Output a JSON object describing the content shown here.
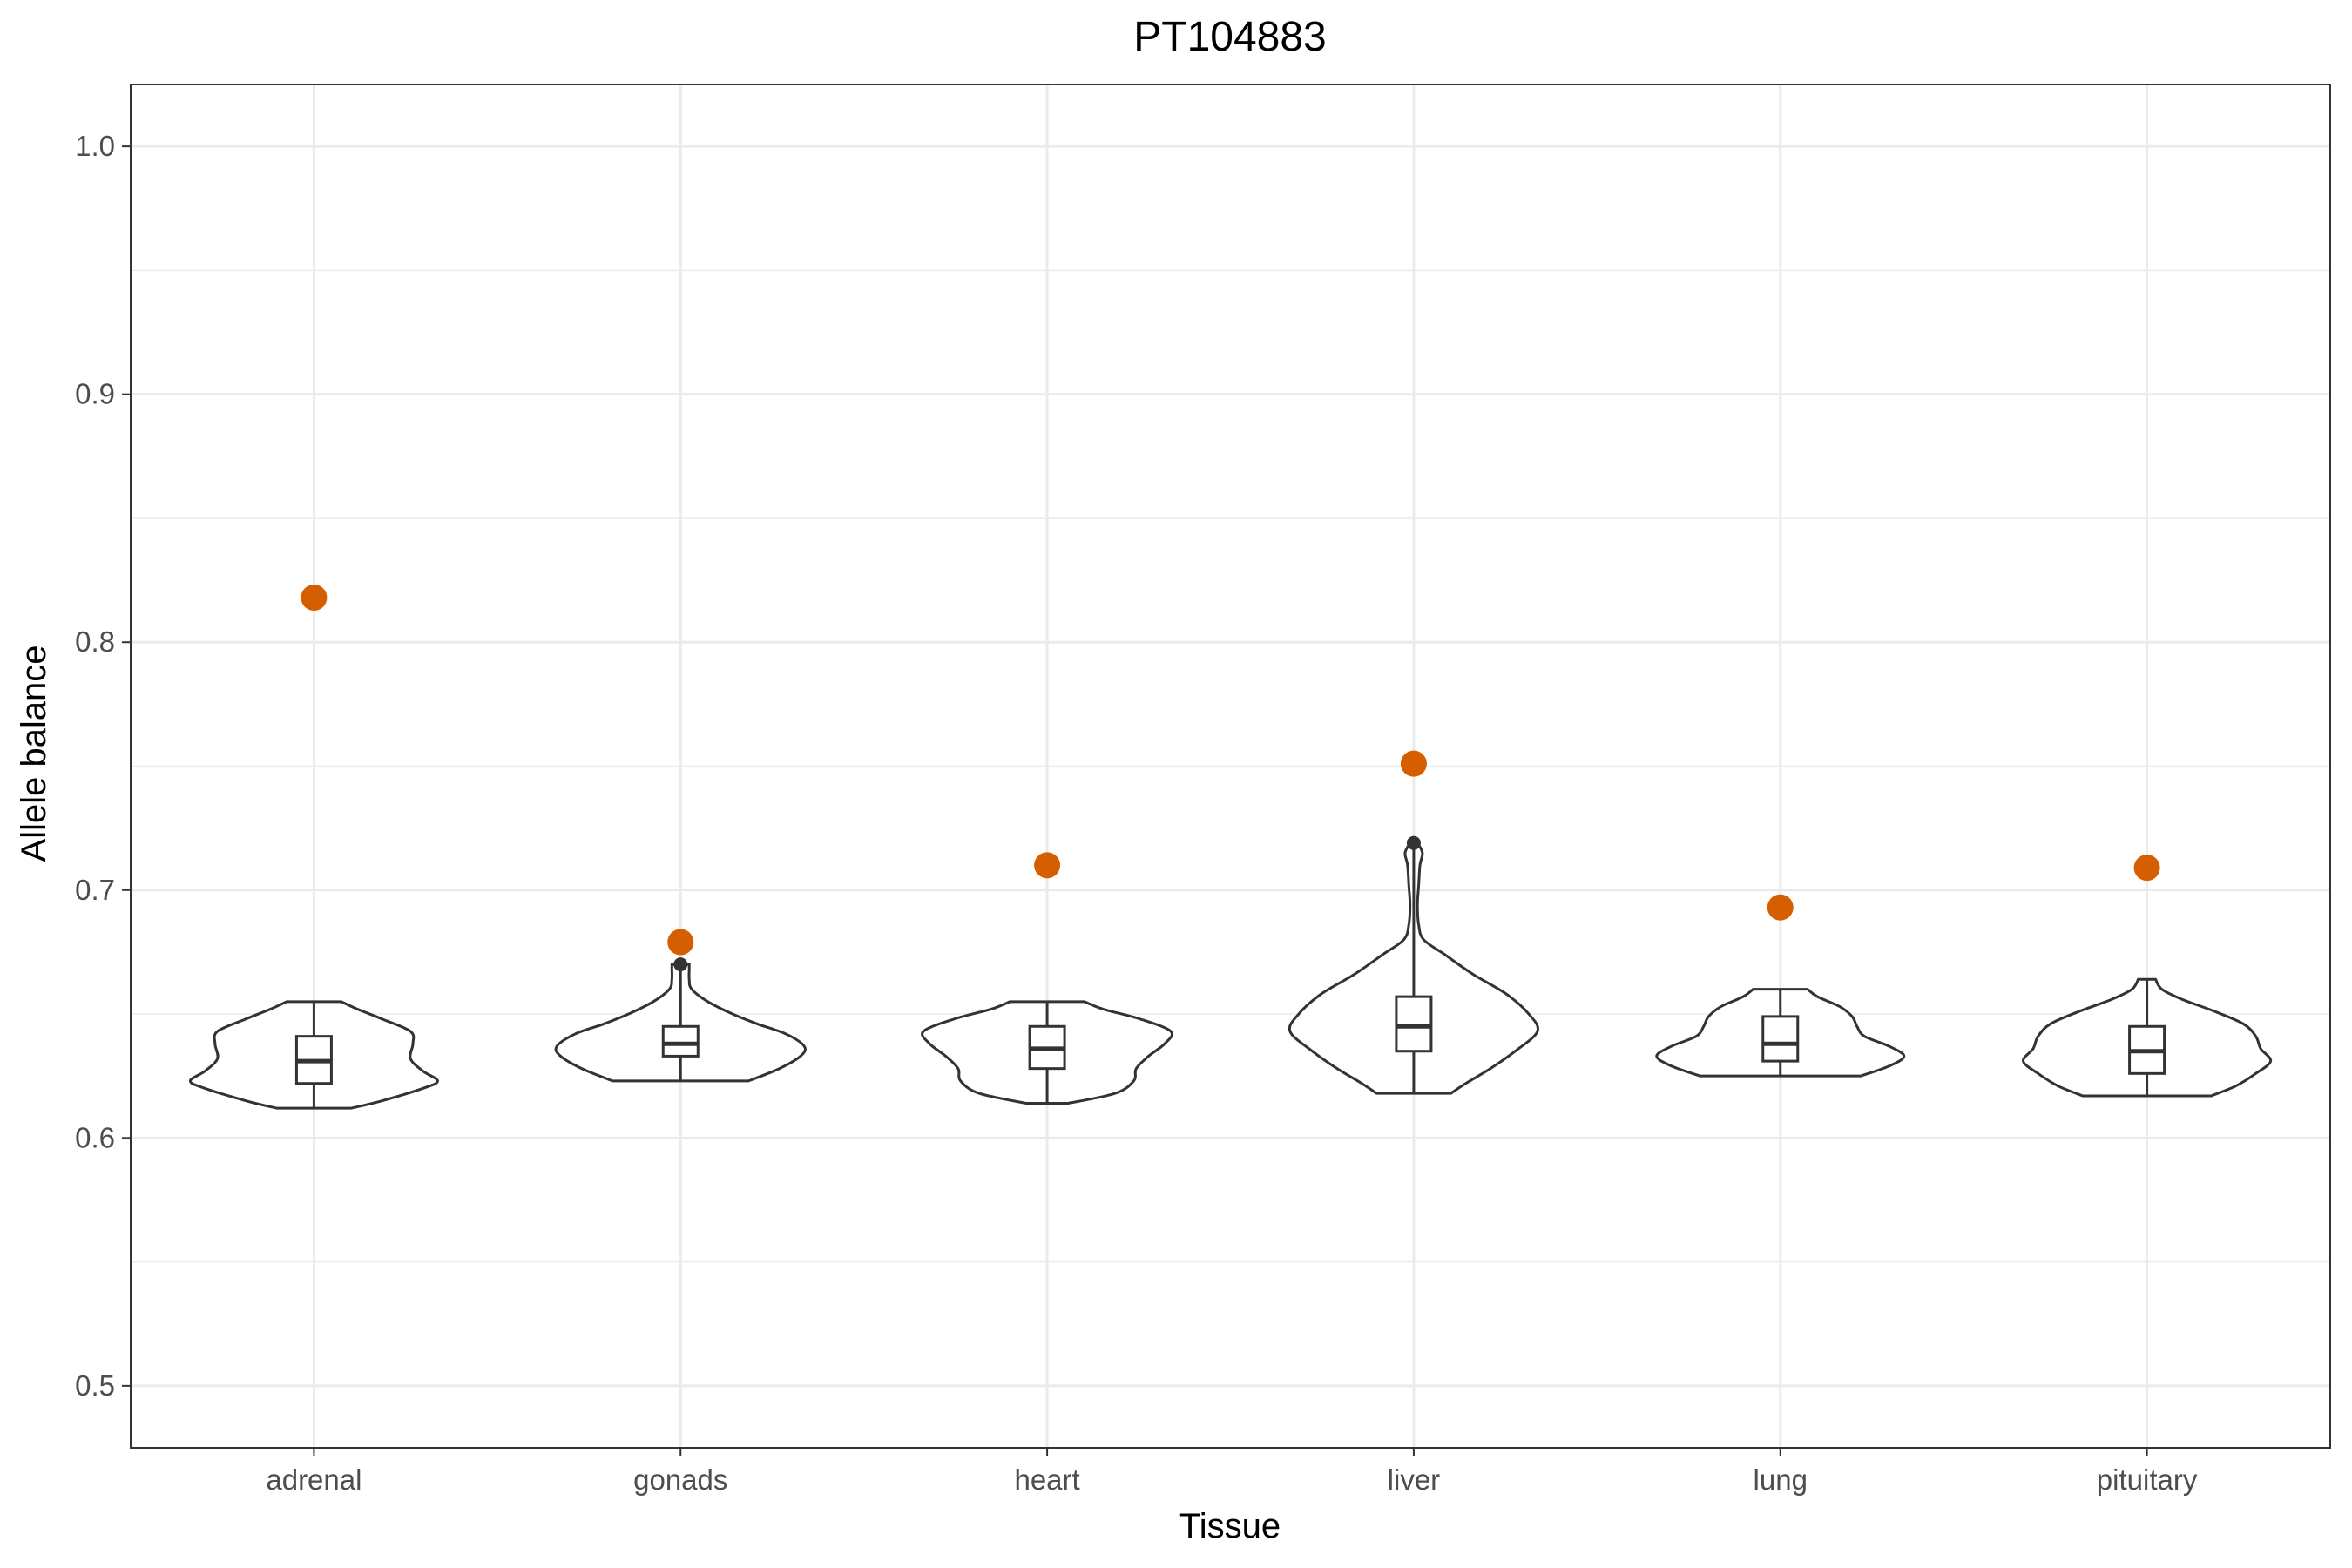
{
  "chart_data": {
    "type": "violin",
    "title": "PT104883",
    "xlabel": "Tissue",
    "ylabel": "Allele balance",
    "ylim": [
      0.475,
      1.025
    ],
    "yticks": [
      0.5,
      0.6,
      0.7,
      0.8,
      0.9,
      1.0
    ],
    "ytick_labels": [
      "0.5",
      "0.6",
      "0.7",
      "0.8",
      "0.9",
      "1.0"
    ],
    "grid": true,
    "colors": {
      "highlight_point": "#D55E00",
      "outline": "#333333",
      "grid": "#ebebeb"
    },
    "categories": [
      "adrenal",
      "gonads",
      "heart",
      "liver",
      "lung",
      "pituitary"
    ],
    "violins": [
      {
        "category": "adrenal",
        "y_min": 0.612,
        "y_max": 0.655,
        "q1": 0.622,
        "median": 0.631,
        "q3": 0.641,
        "outliers": [],
        "density": [
          [
            0.612,
            0.3
          ],
          [
            0.615,
            0.55
          ],
          [
            0.62,
            0.88
          ],
          [
            0.623,
            1.0
          ],
          [
            0.627,
            0.88
          ],
          [
            0.632,
            0.78
          ],
          [
            0.638,
            0.8
          ],
          [
            0.643,
            0.78
          ],
          [
            0.648,
            0.55
          ],
          [
            0.652,
            0.35
          ],
          [
            0.655,
            0.22
          ]
        ]
      },
      {
        "category": "gonads",
        "y_min": 0.623,
        "y_max": 0.67,
        "q1": 0.633,
        "median": 0.638,
        "q3": 0.645,
        "outliers": [
          0.67
        ],
        "density": [
          [
            0.623,
            0.55
          ],
          [
            0.628,
            0.8
          ],
          [
            0.633,
            0.97
          ],
          [
            0.637,
            1.0
          ],
          [
            0.642,
            0.85
          ],
          [
            0.646,
            0.62
          ],
          [
            0.65,
            0.42
          ],
          [
            0.655,
            0.22
          ],
          [
            0.66,
            0.09
          ],
          [
            0.664,
            0.07
          ],
          [
            0.668,
            0.07
          ],
          [
            0.67,
            0.07
          ]
        ]
      },
      {
        "category": "heart",
        "y_min": 0.614,
        "y_max": 0.655,
        "q1": 0.628,
        "median": 0.636,
        "q3": 0.645,
        "outliers": [],
        "density": [
          [
            0.614,
            0.17
          ],
          [
            0.618,
            0.55
          ],
          [
            0.623,
            0.7
          ],
          [
            0.628,
            0.72
          ],
          [
            0.633,
            0.82
          ],
          [
            0.638,
            0.95
          ],
          [
            0.643,
            1.0
          ],
          [
            0.648,
            0.75
          ],
          [
            0.652,
            0.45
          ],
          [
            0.655,
            0.3
          ]
        ]
      },
      {
        "category": "liver",
        "y_min": 0.618,
        "y_max": 0.719,
        "q1": 0.635,
        "median": 0.645,
        "q3": 0.657,
        "outliers": [
          0.719
        ],
        "density": [
          [
            0.618,
            0.3
          ],
          [
            0.622,
            0.42
          ],
          [
            0.628,
            0.62
          ],
          [
            0.635,
            0.82
          ],
          [
            0.643,
            1.0
          ],
          [
            0.65,
            0.93
          ],
          [
            0.658,
            0.75
          ],
          [
            0.666,
            0.48
          ],
          [
            0.674,
            0.25
          ],
          [
            0.68,
            0.08
          ],
          [
            0.686,
            0.04
          ],
          [
            0.694,
            0.03
          ],
          [
            0.702,
            0.04
          ],
          [
            0.71,
            0.05
          ],
          [
            0.715,
            0.07
          ],
          [
            0.719,
            0.03
          ]
        ]
      },
      {
        "category": "lung",
        "y_min": 0.625,
        "y_max": 0.66,
        "q1": 0.631,
        "median": 0.638,
        "q3": 0.649,
        "outliers": [],
        "density": [
          [
            0.625,
            0.65
          ],
          [
            0.629,
            0.88
          ],
          [
            0.633,
            1.0
          ],
          [
            0.637,
            0.88
          ],
          [
            0.641,
            0.68
          ],
          [
            0.645,
            0.62
          ],
          [
            0.649,
            0.58
          ],
          [
            0.653,
            0.48
          ],
          [
            0.657,
            0.3
          ],
          [
            0.66,
            0.22
          ]
        ]
      },
      {
        "category": "pituitary",
        "y_min": 0.617,
        "y_max": 0.664,
        "q1": 0.626,
        "median": 0.635,
        "q3": 0.645,
        "outliers": [],
        "density": [
          [
            0.617,
            0.52
          ],
          [
            0.621,
            0.72
          ],
          [
            0.626,
            0.88
          ],
          [
            0.631,
            1.0
          ],
          [
            0.636,
            0.92
          ],
          [
            0.641,
            0.88
          ],
          [
            0.646,
            0.78
          ],
          [
            0.651,
            0.55
          ],
          [
            0.656,
            0.28
          ],
          [
            0.66,
            0.12
          ],
          [
            0.664,
            0.07
          ]
        ]
      }
    ],
    "highlight_points": [
      {
        "category": "adrenal",
        "value": 0.818
      },
      {
        "category": "gonads",
        "value": 0.679
      },
      {
        "category": "heart",
        "value": 0.71
      },
      {
        "category": "liver",
        "value": 0.751
      },
      {
        "category": "lung",
        "value": 0.693
      },
      {
        "category": "pituitary",
        "value": 0.709
      }
    ]
  }
}
